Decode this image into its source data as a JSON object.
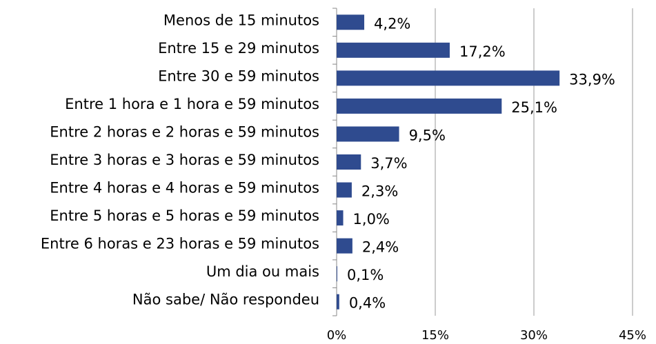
{
  "chart_data": {
    "type": "hbar",
    "categories": [
      "Menos de 15 minutos",
      "Entre 15 e 29 minutos",
      "Entre 30 e 59 minutos",
      "Entre 1 hora e 1 hora e 59 minutos",
      "Entre 2 horas e 2 horas e 59 minutos",
      "Entre 3 horas e 3 horas e 59 minutos",
      "Entre 4 horas e 4 horas e 59 minutos",
      "Entre 5 horas e 5 horas e 59 minutos",
      "Entre 6 horas e 23 horas e 59 minutos",
      "Um dia ou mais",
      "Não sabe/ Não respondeu"
    ],
    "values": [
      4.2,
      17.2,
      33.9,
      25.1,
      9.5,
      3.7,
      2.3,
      1.0,
      2.4,
      0.1,
      0.4
    ],
    "value_labels": [
      "4,2%",
      "17,2%",
      "33,9%",
      "25,1%",
      "9,5%",
      "3,7%",
      "2,3%",
      "1,0%",
      "2,4%",
      "0,1%",
      "0,4%"
    ],
    "color": "#2f4b8f",
    "xlim": [
      0,
      45
    ],
    "xticks": [
      {
        "value": 0,
        "label": "0%"
      },
      {
        "value": 15,
        "label": "15%"
      },
      {
        "value": 30,
        "label": "30%"
      },
      {
        "value": 45,
        "label": "45%"
      }
    ],
    "grid": true
  }
}
